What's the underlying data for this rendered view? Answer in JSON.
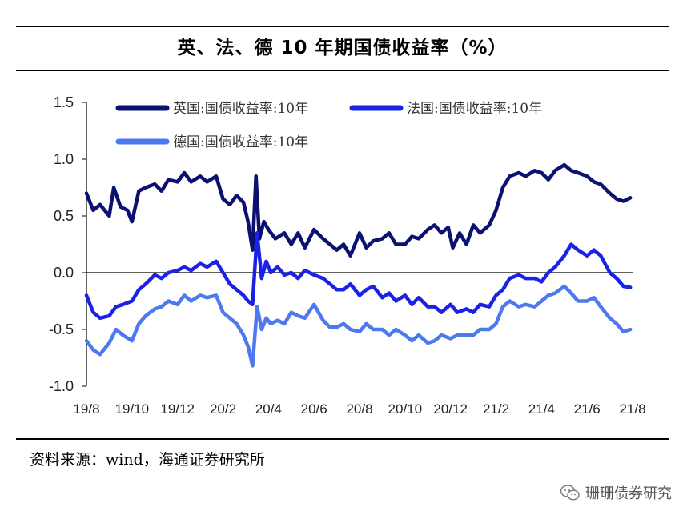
{
  "header": {
    "title": "英、法、德 10 年期国债收益率（%）"
  },
  "footer": {
    "source": "资料来源：wind，海通证券研究所",
    "watermark": "珊珊债券研究"
  },
  "chart_data": {
    "type": "line",
    "title": "英、法、德 10 年期国债收益率（%）",
    "xlabel": "",
    "ylabel": "",
    "ylim": [
      -1.0,
      1.5
    ],
    "yticks": [
      1.5,
      1.0,
      0.5,
      0.0,
      -0.5,
      -1.0
    ],
    "ytick_labels": [
      "1.5",
      "1.0",
      "0.5",
      "0.0",
      "-0.5",
      "-1.0"
    ],
    "xlim": [
      0,
      24
    ],
    "xticks": [
      0,
      2,
      4,
      6,
      8,
      10,
      12,
      14,
      16,
      18,
      20,
      22,
      24
    ],
    "xtick_labels": [
      "19/8",
      "19/10",
      "19/12",
      "20/2",
      "20/4",
      "20/6",
      "20/8",
      "20/10",
      "20/12",
      "21/2",
      "21/4",
      "21/6",
      "21/8"
    ],
    "grid": false,
    "legend_position": "top-left",
    "series": [
      {
        "name": "英国:国债收益率:10年",
        "color": "#0b1170",
        "x": [
          0,
          0.3,
          0.6,
          1.0,
          1.2,
          1.5,
          1.8,
          2.0,
          2.3,
          2.6,
          3.0,
          3.3,
          3.6,
          4.0,
          4.3,
          4.6,
          5.0,
          5.3,
          5.7,
          6.0,
          6.3,
          6.6,
          6.9,
          7.1,
          7.3,
          7.45,
          7.6,
          7.8,
          8.0,
          8.3,
          8.7,
          9.0,
          9.3,
          9.6,
          10.0,
          10.4,
          10.7,
          11.0,
          11.3,
          11.6,
          12.0,
          12.3,
          12.6,
          13.0,
          13.3,
          13.6,
          14.0,
          14.3,
          14.6,
          15.0,
          15.3,
          15.6,
          15.9,
          16.1,
          16.4,
          16.7,
          17.0,
          17.3,
          17.7,
          18.0,
          18.3,
          18.6,
          19.0,
          19.3,
          19.7,
          20.0,
          20.3,
          20.6,
          21.0,
          21.3,
          21.6,
          22.0,
          22.3,
          22.6,
          23.0,
          23.3,
          23.6,
          23.9
        ],
        "values": [
          0.7,
          0.55,
          0.6,
          0.5,
          0.75,
          0.58,
          0.55,
          0.45,
          0.72,
          0.75,
          0.78,
          0.72,
          0.82,
          0.8,
          0.88,
          0.8,
          0.85,
          0.8,
          0.85,
          0.65,
          0.6,
          0.68,
          0.62,
          0.45,
          0.2,
          0.85,
          0.3,
          0.45,
          0.38,
          0.3,
          0.35,
          0.25,
          0.35,
          0.22,
          0.38,
          0.3,
          0.25,
          0.2,
          0.25,
          0.15,
          0.35,
          0.22,
          0.28,
          0.3,
          0.35,
          0.25,
          0.25,
          0.32,
          0.3,
          0.38,
          0.42,
          0.35,
          0.4,
          0.22,
          0.35,
          0.25,
          0.42,
          0.35,
          0.42,
          0.55,
          0.75,
          0.85,
          0.88,
          0.85,
          0.9,
          0.88,
          0.82,
          0.9,
          0.95,
          0.9,
          0.88,
          0.85,
          0.8,
          0.78,
          0.7,
          0.65,
          0.63,
          0.66
        ]
      },
      {
        "name": "法国:国债收益率:10年",
        "color": "#1a22e8",
        "x": [
          0,
          0.3,
          0.6,
          1.0,
          1.3,
          1.6,
          2.0,
          2.3,
          2.6,
          3.0,
          3.3,
          3.6,
          4.0,
          4.3,
          4.6,
          5.0,
          5.3,
          5.7,
          6.0,
          6.3,
          6.6,
          6.9,
          7.1,
          7.3,
          7.5,
          7.7,
          7.9,
          8.1,
          8.4,
          8.7,
          9.0,
          9.3,
          9.6,
          10.0,
          10.4,
          10.7,
          11.0,
          11.3,
          11.6,
          12.0,
          12.3,
          12.6,
          13.0,
          13.3,
          13.6,
          14.0,
          14.3,
          14.6,
          15.0,
          15.3,
          15.6,
          16.0,
          16.3,
          16.7,
          17.0,
          17.3,
          17.7,
          18.0,
          18.3,
          18.6,
          19.0,
          19.3,
          19.7,
          20.0,
          20.3,
          20.6,
          21.0,
          21.3,
          21.6,
          22.0,
          22.3,
          22.6,
          23.0,
          23.3,
          23.6,
          23.9
        ],
        "values": [
          -0.2,
          -0.35,
          -0.4,
          -0.38,
          -0.3,
          -0.28,
          -0.25,
          -0.15,
          -0.1,
          -0.02,
          -0.05,
          0.0,
          0.02,
          0.05,
          0.02,
          0.08,
          0.05,
          0.1,
          0.0,
          -0.1,
          -0.15,
          -0.2,
          -0.25,
          -0.28,
          0.35,
          -0.05,
          0.1,
          0.0,
          0.05,
          -0.02,
          0.0,
          -0.05,
          0.02,
          -0.02,
          -0.05,
          -0.1,
          -0.15,
          -0.15,
          -0.1,
          -0.2,
          -0.15,
          -0.12,
          -0.22,
          -0.18,
          -0.25,
          -0.2,
          -0.28,
          -0.22,
          -0.3,
          -0.3,
          -0.35,
          -0.28,
          -0.35,
          -0.32,
          -0.35,
          -0.28,
          -0.3,
          -0.2,
          -0.15,
          -0.05,
          -0.02,
          -0.05,
          -0.05,
          -0.08,
          0.0,
          0.05,
          0.15,
          0.25,
          0.2,
          0.15,
          0.2,
          0.15,
          0.0,
          -0.05,
          -0.12,
          -0.13
        ]
      },
      {
        "name": "德国:国债收益率:10年",
        "color": "#4d79f0",
        "x": [
          0,
          0.3,
          0.6,
          1.0,
          1.3,
          1.6,
          2.0,
          2.3,
          2.6,
          3.0,
          3.3,
          3.6,
          4.0,
          4.3,
          4.6,
          5.0,
          5.3,
          5.7,
          6.0,
          6.3,
          6.6,
          6.9,
          7.1,
          7.3,
          7.5,
          7.7,
          7.9,
          8.1,
          8.4,
          8.7,
          9.0,
          9.3,
          9.6,
          10.0,
          10.4,
          10.7,
          11.0,
          11.3,
          11.6,
          12.0,
          12.3,
          12.6,
          13.0,
          13.3,
          13.6,
          14.0,
          14.3,
          14.6,
          15.0,
          15.3,
          15.6,
          16.0,
          16.3,
          16.7,
          17.0,
          17.3,
          17.7,
          18.0,
          18.3,
          18.6,
          19.0,
          19.3,
          19.7,
          20.0,
          20.3,
          20.6,
          21.0,
          21.3,
          21.6,
          22.0,
          22.3,
          22.6,
          23.0,
          23.3,
          23.6,
          23.9
        ],
        "values": [
          -0.6,
          -0.68,
          -0.72,
          -0.62,
          -0.5,
          -0.55,
          -0.6,
          -0.45,
          -0.38,
          -0.32,
          -0.3,
          -0.25,
          -0.28,
          -0.2,
          -0.25,
          -0.2,
          -0.22,
          -0.2,
          -0.35,
          -0.4,
          -0.45,
          -0.55,
          -0.65,
          -0.82,
          -0.3,
          -0.5,
          -0.4,
          -0.45,
          -0.42,
          -0.45,
          -0.35,
          -0.38,
          -0.4,
          -0.28,
          -0.42,
          -0.48,
          -0.48,
          -0.45,
          -0.5,
          -0.52,
          -0.45,
          -0.5,
          -0.5,
          -0.55,
          -0.5,
          -0.55,
          -0.6,
          -0.55,
          -0.62,
          -0.6,
          -0.55,
          -0.58,
          -0.55,
          -0.55,
          -0.55,
          -0.5,
          -0.5,
          -0.45,
          -0.3,
          -0.25,
          -0.3,
          -0.28,
          -0.3,
          -0.25,
          -0.2,
          -0.18,
          -0.12,
          -0.18,
          -0.25,
          -0.25,
          -0.22,
          -0.3,
          -0.4,
          -0.45,
          -0.52,
          -0.5
        ]
      }
    ]
  }
}
